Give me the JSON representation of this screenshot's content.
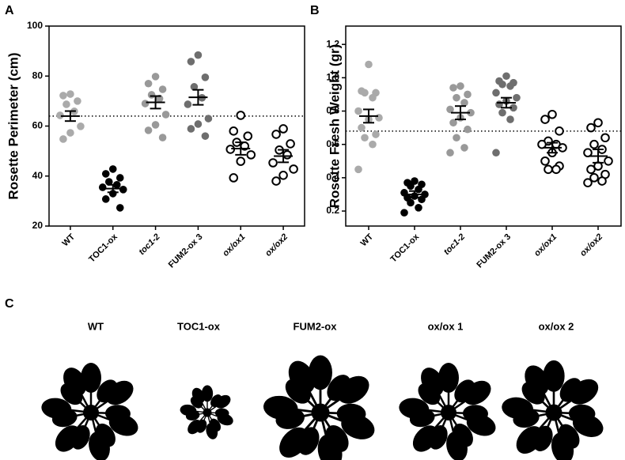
{
  "chart_data": [
    {
      "type": "dot",
      "panel": "A",
      "ylabel": "Rosette Perimeter (cm)",
      "categories": [
        "WT",
        "TOC1-ox",
        "toc1-2",
        "FUM2-ox 3",
        "ox/ox1",
        "ox/ox2"
      ],
      "italic_labels": [
        false,
        false,
        true,
        false,
        true,
        true
      ],
      "colors": [
        "#aaaaaa",
        "#000000",
        "#999999",
        "#6e6e6e",
        "#000000",
        "#000000"
      ],
      "hollow": [
        false,
        false,
        false,
        false,
        true,
        true
      ],
      "values": [
        [
          72.8,
          72.2,
          70,
          68.7,
          65.9,
          64.3,
          59.9,
          57.3,
          54.8
        ],
        [
          42.8,
          40.9,
          39.3,
          37.7,
          36.5,
          35.5,
          34.6,
          33,
          30.8,
          27.3
        ],
        [
          79.8,
          77,
          74.7,
          72.5,
          71,
          69,
          64.6,
          60.5,
          58.3,
          55.4
        ],
        [
          88.4,
          85.8,
          79.5,
          75.7,
          71.3,
          68.7,
          63,
          60.8,
          58.9,
          56
        ],
        [
          64.3,
          58,
          56,
          53.5,
          52,
          50.7,
          48.5,
          45.9,
          39.3
        ],
        [
          58.9,
          56.7,
          52.9,
          50.4,
          48.5,
          45.3,
          42.8,
          40.3,
          38
        ]
      ],
      "means": [
        64,
        35,
        69.5,
        71.5,
        51,
        48
      ],
      "sem": [
        2,
        1.5,
        2.5,
        3,
        2.5,
        2.5
      ],
      "reference_line": 64,
      "ylim": [
        20,
        100
      ],
      "yticks": [
        20,
        40,
        60,
        80,
        100
      ]
    },
    {
      "type": "dot",
      "panel": "B",
      "ylabel": "Rosette Fresh Weight (gr)",
      "categories": [
        "WT",
        "TOC1-ox",
        "toc1-2",
        "FUM2-ox 3",
        "ox/ox1",
        "ox/ox2"
      ],
      "italic_labels": [
        false,
        false,
        true,
        false,
        true,
        true
      ],
      "colors": [
        "#aaaaaa",
        "#000000",
        "#999999",
        "#6e6e6e",
        "#000000",
        "#000000"
      ],
      "hollow": [
        false,
        false,
        false,
        false,
        true,
        true
      ],
      "values": [
        [
          1.08,
          0.92,
          0.91,
          0.91,
          0.88,
          0.8,
          0.76,
          0.75,
          0.7,
          0.66,
          0.64,
          0.6,
          0.45
        ],
        [
          0.38,
          0.37,
          0.36,
          0.35,
          0.33,
          0.31,
          0.3,
          0.29,
          0.28,
          0.27,
          0.25,
          0.22,
          0.19
        ],
        [
          0.95,
          0.94,
          0.9,
          0.88,
          0.85,
          0.81,
          0.79,
          0.76,
          0.73,
          0.69,
          0.64,
          0.58,
          0.55
        ],
        [
          1.01,
          0.98,
          0.97,
          0.96,
          0.95,
          0.91,
          0.88,
          0.86,
          0.84,
          0.82,
          0.79,
          0.75,
          0.55
        ],
        [
          0.78,
          0.75,
          0.68,
          0.62,
          0.6,
          0.6,
          0.58,
          0.55,
          0.5,
          0.47,
          0.45,
          0.45
        ],
        [
          0.73,
          0.7,
          0.64,
          0.6,
          0.57,
          0.55,
          0.5,
          0.47,
          0.45,
          0.42,
          0.4,
          0.38,
          0.37
        ]
      ],
      "means": [
        0.77,
        0.3,
        0.79,
        0.85,
        0.58,
        0.53
      ],
      "sem": [
        0.04,
        0.02,
        0.04,
        0.03,
        0.03,
        0.04
      ],
      "reference_line": 0.68,
      "ylim": [
        0.11,
        1.31
      ],
      "yticks": [
        0.2,
        0.4,
        0.6,
        0.8,
        {
          "value": 1,
          "label": "1.0"
        },
        1.2
      ]
    }
  ],
  "panel_c": {
    "label": "C",
    "plants": [
      "WT",
      "TOC1-ox",
      "FUM2-ox",
      "ox/ox 1",
      "ox/ox 2"
    ]
  }
}
